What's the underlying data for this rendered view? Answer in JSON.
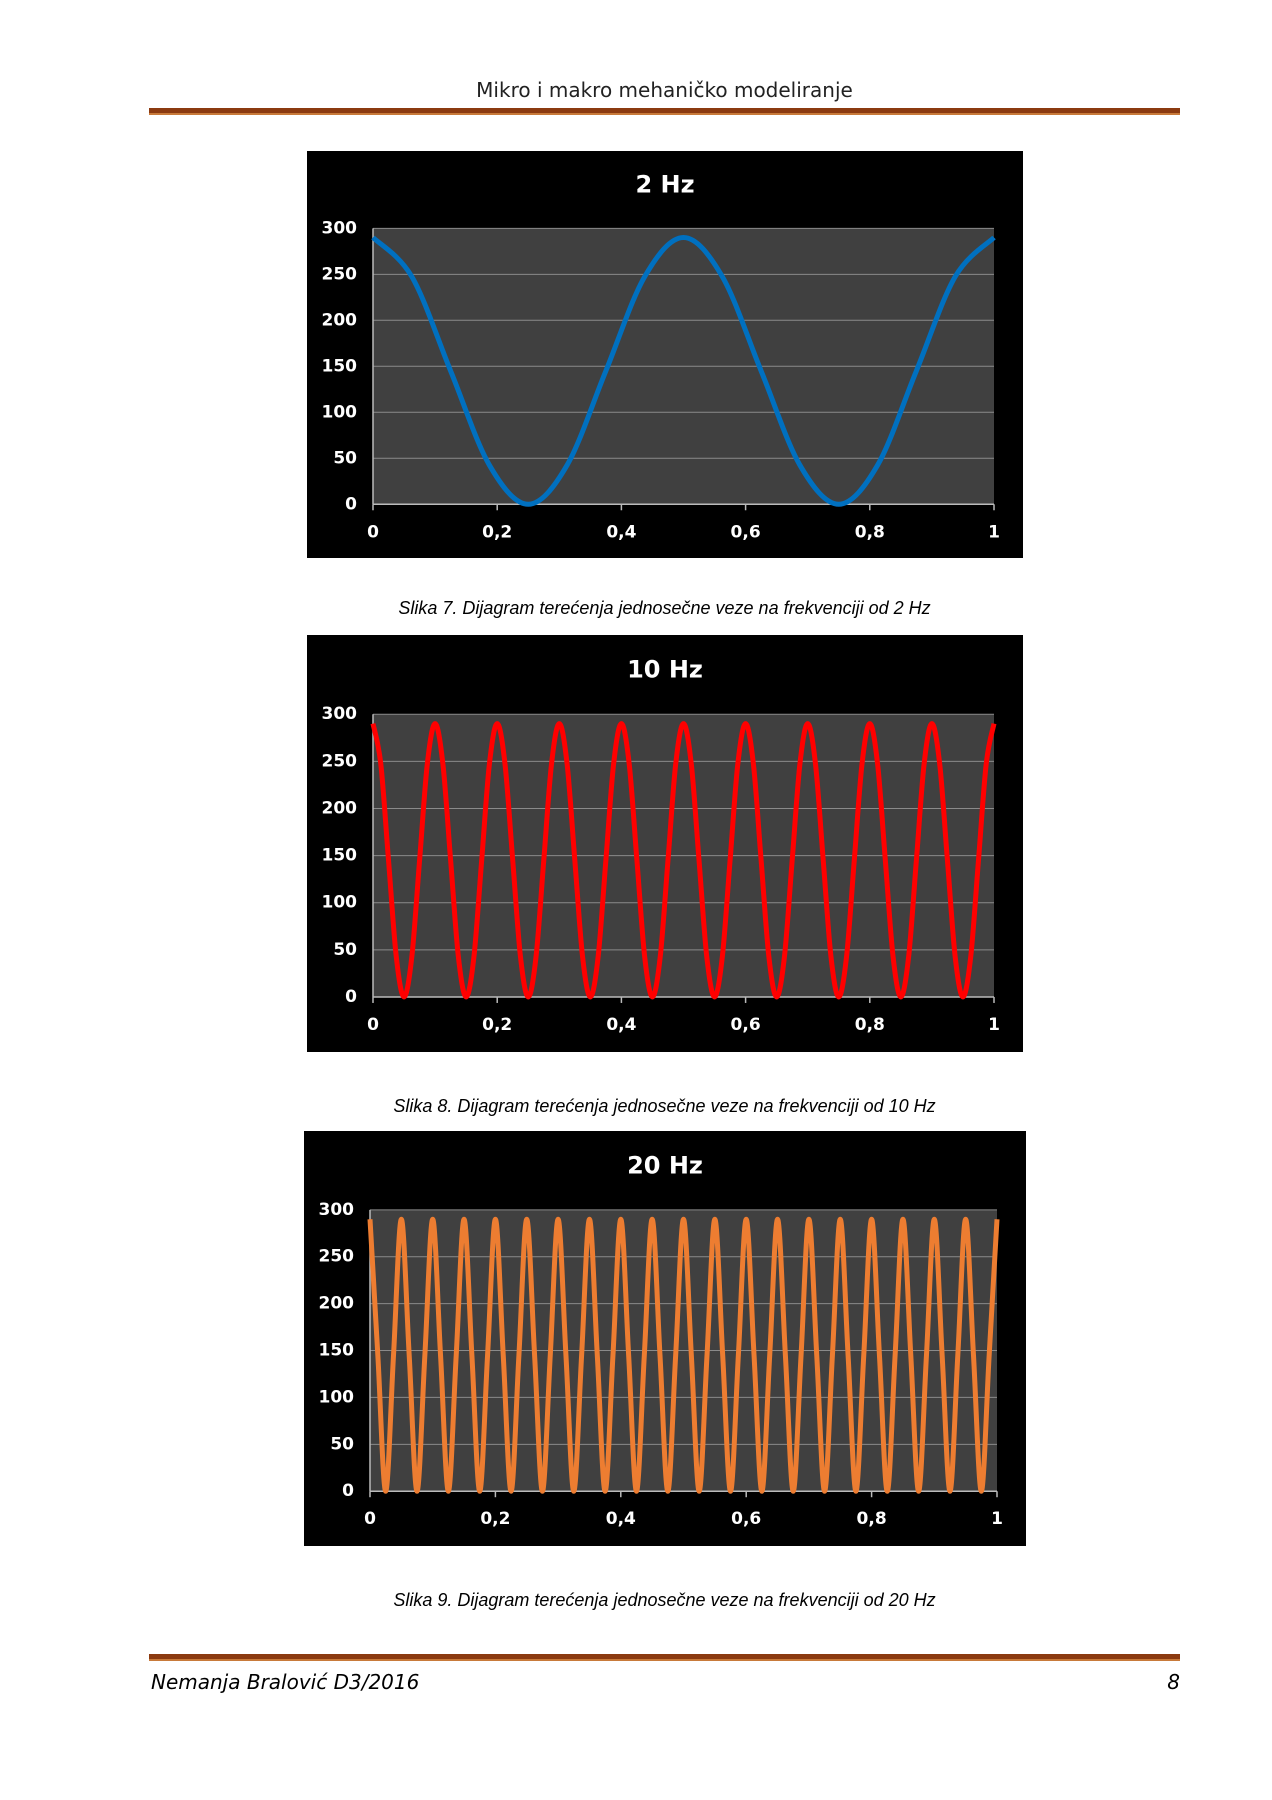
{
  "header": {
    "title": "Mikro i makro mehaničko modeliranje"
  },
  "figures": [
    {
      "chart_data": {
        "type": "line",
        "title": "2 Hz",
        "color": "#0070c0",
        "x": [
          0,
          0.0625,
          0.125,
          0.1875,
          0.25,
          0.3125,
          0.375,
          0.4375,
          0.5,
          0.5625,
          0.625,
          0.6875,
          0.75,
          0.8125,
          0.875,
          0.9375,
          1
        ],
        "values": [
          290,
          247.5,
          145,
          42.5,
          0,
          42.5,
          145,
          247.5,
          290,
          247.5,
          145,
          42.5,
          0,
          42.5,
          145,
          247.5,
          290
        ],
        "xlim": [
          0,
          1
        ],
        "ylim": [
          0,
          300
        ],
        "xticks": [
          0,
          {
            "value": 0.2,
            "label": "0,2"
          },
          {
            "value": 0.4,
            "label": "0,4"
          },
          {
            "value": 0.6,
            "label": "0,6"
          },
          {
            "value": 0.8,
            "label": "0,8"
          },
          1
        ],
        "yticks": [
          0,
          50,
          100,
          150,
          200,
          250,
          300
        ],
        "grid": true
      },
      "caption": "Slika 7. Dijagram terećenja jednosečne veze na frekvenciji od 2 Hz"
    },
    {
      "chart_data": {
        "type": "line",
        "title": "10 Hz",
        "color": "#ff0000",
        "x": [
          0,
          0.0125,
          0.025,
          0.0375,
          0.05,
          0.0625,
          0.075,
          0.0875,
          0.1,
          0.1125,
          0.125,
          0.1375,
          0.15,
          0.1625,
          0.175,
          0.1875,
          0.2,
          0.2125,
          0.225,
          0.2375,
          0.25,
          0.2625,
          0.275,
          0.2875,
          0.3,
          0.3125,
          0.325,
          0.3375,
          0.35,
          0.3625,
          0.375,
          0.3875,
          0.4,
          0.4125,
          0.425,
          0.4375,
          0.45,
          0.4625,
          0.475,
          0.4875,
          0.5,
          0.5125,
          0.525,
          0.5375,
          0.55,
          0.5625,
          0.575,
          0.5875,
          0.6,
          0.6125,
          0.625,
          0.6375,
          0.65,
          0.6625,
          0.675,
          0.6875,
          0.7,
          0.7125,
          0.725,
          0.7375,
          0.75,
          0.7625,
          0.775,
          0.7875,
          0.8,
          0.8125,
          0.825,
          0.8375,
          0.85,
          0.8625,
          0.875,
          0.8875,
          0.9,
          0.9125,
          0.925,
          0.9375,
          0.95,
          0.9625,
          0.975,
          0.9875,
          1
        ],
        "values": [
          290,
          247.5,
          145,
          42.5,
          0,
          42.5,
          145,
          247.5,
          290,
          247.5,
          145,
          42.5,
          0,
          42.5,
          145,
          247.5,
          290,
          247.5,
          145,
          42.5,
          0,
          42.5,
          145,
          247.5,
          290,
          247.5,
          145,
          42.5,
          0,
          42.5,
          145,
          247.5,
          290,
          247.5,
          145,
          42.5,
          0,
          42.5,
          145,
          247.5,
          290,
          247.5,
          145,
          42.5,
          0,
          42.5,
          145,
          247.5,
          290,
          247.5,
          145,
          42.5,
          0,
          42.5,
          145,
          247.5,
          290,
          247.5,
          145,
          42.5,
          0,
          42.5,
          145,
          247.5,
          290,
          247.5,
          145,
          42.5,
          0,
          42.5,
          145,
          247.5,
          290,
          247.5,
          145,
          42.5,
          0,
          42.5,
          145,
          247.5,
          290
        ],
        "xlim": [
          0,
          1
        ],
        "ylim": [
          0,
          300
        ],
        "xticks": [
          0,
          {
            "value": 0.2,
            "label": "0,2"
          },
          {
            "value": 0.4,
            "label": "0,4"
          },
          {
            "value": 0.6,
            "label": "0,6"
          },
          {
            "value": 0.8,
            "label": "0,8"
          },
          1
        ],
        "yticks": [
          0,
          50,
          100,
          150,
          200,
          250,
          300
        ],
        "grid": true
      },
      "caption": "Slika 8. Dijagram terećenja jednosečne veze na frekvenciji od 10 Hz"
    },
    {
      "chart_data": {
        "type": "line",
        "title": "20 Hz",
        "color": "#ed7d31",
        "x": [
          0,
          0.0125,
          0.025,
          0.0375,
          0.05,
          0.0625,
          0.075,
          0.0875,
          0.1,
          0.1125,
          0.125,
          0.1375,
          0.15,
          0.1625,
          0.175,
          0.1875,
          0.2,
          0.2125,
          0.225,
          0.2375,
          0.25,
          0.2625,
          0.275,
          0.2875,
          0.3,
          0.3125,
          0.325,
          0.3375,
          0.35,
          0.3625,
          0.375,
          0.3875,
          0.4,
          0.4125,
          0.425,
          0.4375,
          0.45,
          0.4625,
          0.475,
          0.4875,
          0.5,
          0.5125,
          0.525,
          0.5375,
          0.55,
          0.5625,
          0.575,
          0.5875,
          0.6,
          0.6125,
          0.625,
          0.6375,
          0.65,
          0.6625,
          0.675,
          0.6875,
          0.7,
          0.7125,
          0.725,
          0.7375,
          0.75,
          0.7625,
          0.775,
          0.7875,
          0.8,
          0.8125,
          0.825,
          0.8375,
          0.85,
          0.8625,
          0.875,
          0.8875,
          0.9,
          0.9125,
          0.925,
          0.9375,
          0.95,
          0.9625,
          0.975,
          0.9875,
          1
        ],
        "values": [
          290,
          145,
          0,
          145,
          290,
          145,
          0,
          145,
          290,
          145,
          0,
          145,
          290,
          145,
          0,
          145,
          290,
          145,
          0,
          145,
          290,
          145,
          0,
          145,
          290,
          145,
          0,
          145,
          290,
          145,
          0,
          145,
          290,
          145,
          0,
          145,
          290,
          145,
          0,
          145,
          290,
          145,
          0,
          145,
          290,
          145,
          0,
          145,
          290,
          145,
          0,
          145,
          290,
          145,
          0,
          145,
          290,
          145,
          0,
          145,
          290,
          145,
          0,
          145,
          290,
          145,
          0,
          145,
          290,
          145,
          0,
          145,
          290,
          145,
          0,
          145,
          290,
          145,
          0,
          145,
          290
        ],
        "xlim": [
          0,
          1
        ],
        "ylim": [
          0,
          300
        ],
        "xticks": [
          0,
          {
            "value": 0.2,
            "label": "0,2"
          },
          {
            "value": 0.4,
            "label": "0,4"
          },
          {
            "value": 0.6,
            "label": "0,6"
          },
          {
            "value": 0.8,
            "label": "0,8"
          },
          1
        ],
        "yticks": [
          0,
          50,
          100,
          150,
          200,
          250,
          300
        ],
        "grid": true
      },
      "caption": "Slika 9. Dijagram terećenja jednosečne veze na frekvenciji od 20 Hz"
    }
  ],
  "footer": {
    "author": "Nemanja Bralović D3/2016",
    "page": "8"
  }
}
